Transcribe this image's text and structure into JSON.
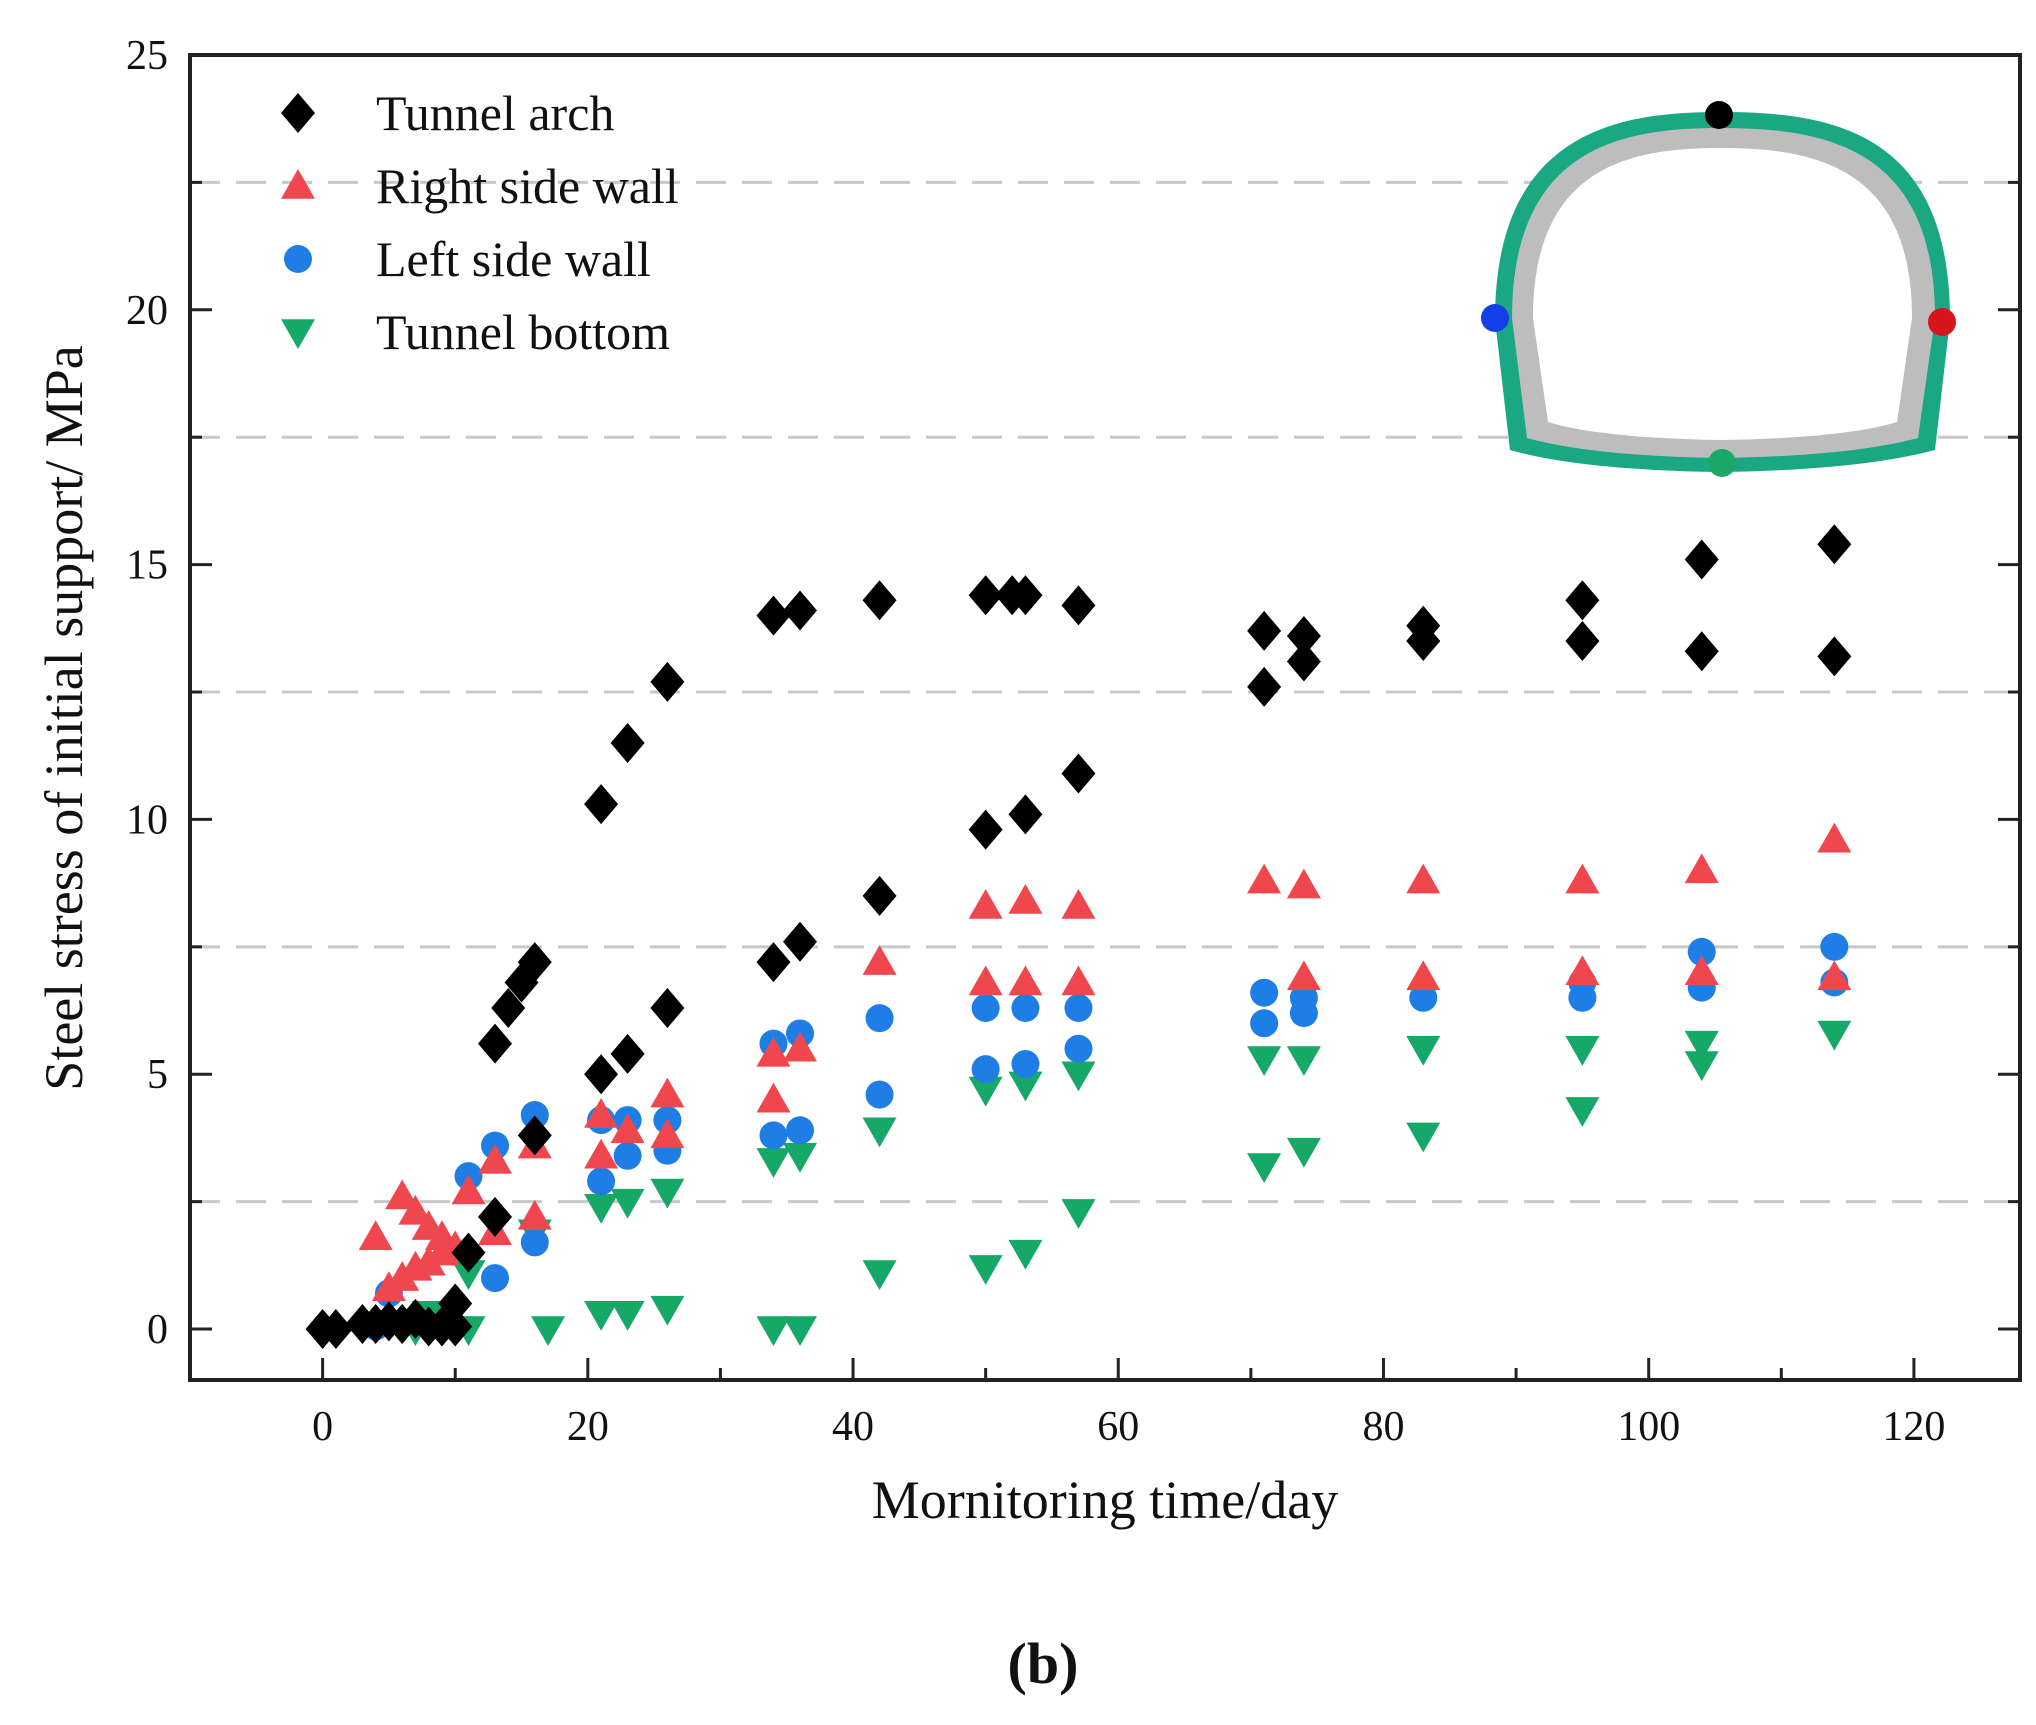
{
  "panel_label": "(b)",
  "colors": {
    "tunnel_arch": "#000000",
    "right_side_wall": "#f0474f",
    "left_side_wall": "#1f7ee6",
    "tunnel_bottom": "#16a867",
    "grid": "#c8c8c8",
    "axis": "#222222",
    "inset_outer": "#1aa783",
    "inset_inner": "#bdbdbd",
    "inset_crown_dot": "#000000",
    "inset_left_dot": "#1240e8",
    "inset_right_dot": "#d7151f",
    "inset_bottom_dot": "#1aa86a"
  },
  "chart_data": {
    "type": "scatter",
    "xlabel": "Mornitoring time/day",
    "ylabel": "Steel stress of initial support/ MPa",
    "xlim": [
      -10,
      128
    ],
    "ylim": [
      -1,
      25
    ],
    "xticks": [
      0,
      20,
      40,
      60,
      80,
      100,
      120
    ],
    "yticks": [
      0,
      5,
      10,
      15,
      20,
      25
    ],
    "grid": "dashed horizontal lines at 2.5, 7.5, 12.5, 17.5, 22.5",
    "legend_position": "top-left",
    "series": [
      {
        "name": "Tunnel arch",
        "marker": "diamond",
        "points": [
          [
            0,
            0
          ],
          [
            1,
            0
          ],
          [
            3,
            0.1
          ],
          [
            4,
            0.1
          ],
          [
            5,
            0.15
          ],
          [
            6,
            0.1
          ],
          [
            7,
            0.2
          ],
          [
            8,
            0.05
          ],
          [
            9,
            0.05
          ],
          [
            10,
            0.05
          ],
          [
            10,
            0.5
          ],
          [
            11,
            1.5
          ],
          [
            13,
            2.2
          ],
          [
            13,
            5.6
          ],
          [
            14,
            6.3
          ],
          [
            15,
            6.8
          ],
          [
            16,
            7.2
          ],
          [
            16,
            3.8
          ],
          [
            21,
            10.3
          ],
          [
            21,
            5.0
          ],
          [
            23,
            11.5
          ],
          [
            23,
            5.4
          ],
          [
            26,
            12.7
          ],
          [
            26,
            6.3
          ],
          [
            34,
            14.0
          ],
          [
            34,
            7.2
          ],
          [
            36,
            14.1
          ],
          [
            36,
            7.6
          ],
          [
            42,
            14.3
          ],
          [
            42,
            8.5
          ],
          [
            50,
            14.4
          ],
          [
            50,
            9.8
          ],
          [
            52,
            14.4
          ],
          [
            53,
            14.4
          ],
          [
            53,
            10.1
          ],
          [
            57,
            14.2
          ],
          [
            57,
            10.9
          ],
          [
            71,
            13.7
          ],
          [
            71,
            12.6
          ],
          [
            74,
            13.6
          ],
          [
            74,
            13.1
          ],
          [
            83,
            13.8
          ],
          [
            83,
            13.5
          ],
          [
            95,
            14.3
          ],
          [
            95,
            13.5
          ],
          [
            104,
            15.1
          ],
          [
            104,
            13.3
          ],
          [
            114,
            15.4
          ],
          [
            114,
            13.2
          ]
        ]
      },
      {
        "name": "Right side wall",
        "marker": "triangle-up",
        "points": [
          [
            4,
            1.8
          ],
          [
            5,
            0.8
          ],
          [
            6,
            1.0
          ],
          [
            6,
            2.6
          ],
          [
            7,
            1.2
          ],
          [
            7,
            2.3
          ],
          [
            8,
            1.3
          ],
          [
            8,
            2.0
          ],
          [
            9,
            1.5
          ],
          [
            9,
            1.8
          ],
          [
            10,
            1.6
          ],
          [
            11,
            2.7
          ],
          [
            13,
            3.3
          ],
          [
            13,
            1.9
          ],
          [
            16,
            3.6
          ],
          [
            16,
            2.2
          ],
          [
            21,
            4.2
          ],
          [
            21,
            3.4
          ],
          [
            23,
            3.9
          ],
          [
            26,
            4.6
          ],
          [
            26,
            3.8
          ],
          [
            34,
            5.4
          ],
          [
            34,
            4.5
          ],
          [
            36,
            5.5
          ],
          [
            42,
            7.2
          ],
          [
            50,
            8.3
          ],
          [
            50,
            6.8
          ],
          [
            53,
            8.4
          ],
          [
            53,
            6.8
          ],
          [
            57,
            8.3
          ],
          [
            57,
            6.8
          ],
          [
            71,
            8.8
          ],
          [
            74,
            8.7
          ],
          [
            74,
            6.9
          ],
          [
            83,
            8.8
          ],
          [
            83,
            6.9
          ],
          [
            95,
            8.8
          ],
          [
            95,
            7.0
          ],
          [
            104,
            9.0
          ],
          [
            104,
            7.0
          ],
          [
            114,
            9.6
          ],
          [
            114,
            6.9
          ]
        ]
      },
      {
        "name": "Left side wall",
        "marker": "circle",
        "points": [
          [
            4,
            0.05
          ],
          [
            5,
            0.7
          ],
          [
            7,
            0.15
          ],
          [
            11,
            3.0
          ],
          [
            13,
            3.6
          ],
          [
            13,
            1.0
          ],
          [
            16,
            4.2
          ],
          [
            16,
            1.7
          ],
          [
            21,
            4.1
          ],
          [
            21,
            2.9
          ],
          [
            23,
            4.1
          ],
          [
            23,
            3.4
          ],
          [
            26,
            4.1
          ],
          [
            26,
            3.5
          ],
          [
            34,
            5.6
          ],
          [
            34,
            3.8
          ],
          [
            36,
            5.8
          ],
          [
            36,
            3.9
          ],
          [
            42,
            6.1
          ],
          [
            42,
            4.6
          ],
          [
            50,
            6.3
          ],
          [
            50,
            5.1
          ],
          [
            53,
            6.3
          ],
          [
            53,
            5.2
          ],
          [
            57,
            6.3
          ],
          [
            57,
            5.5
          ],
          [
            71,
            6.6
          ],
          [
            71,
            6.0
          ],
          [
            74,
            6.5
          ],
          [
            74,
            6.2
          ],
          [
            83,
            6.5
          ],
          [
            95,
            6.8
          ],
          [
            95,
            6.5
          ],
          [
            104,
            7.4
          ],
          [
            104,
            6.7
          ],
          [
            114,
            7.5
          ],
          [
            114,
            6.8
          ]
        ]
      },
      {
        "name": "Tunnel bottom",
        "marker": "triangle-down",
        "points": [
          [
            7,
            0.0
          ],
          [
            8,
            0.3
          ],
          [
            8,
            0.0
          ],
          [
            10,
            0.0
          ],
          [
            11,
            1.1
          ],
          [
            11,
            0.0
          ],
          [
            16,
            1.9
          ],
          [
            17,
            0.0
          ],
          [
            21,
            2.4
          ],
          [
            21,
            0.3
          ],
          [
            23,
            2.5
          ],
          [
            23,
            0.3
          ],
          [
            26,
            2.7
          ],
          [
            26,
            0.4
          ],
          [
            34,
            3.3
          ],
          [
            34,
            0.0
          ],
          [
            36,
            3.4
          ],
          [
            36,
            0.0
          ],
          [
            42,
            3.9
          ],
          [
            42,
            1.1
          ],
          [
            50,
            4.7
          ],
          [
            50,
            1.2
          ],
          [
            53,
            4.8
          ],
          [
            53,
            1.5
          ],
          [
            57,
            5.0
          ],
          [
            57,
            2.3
          ],
          [
            71,
            5.3
          ],
          [
            71,
            3.2
          ],
          [
            74,
            5.3
          ],
          [
            74,
            3.5
          ],
          [
            83,
            5.5
          ],
          [
            83,
            3.8
          ],
          [
            95,
            5.5
          ],
          [
            95,
            4.3
          ],
          [
            104,
            5.6
          ],
          [
            104,
            5.2
          ],
          [
            114,
            5.8
          ]
        ]
      }
    ]
  }
}
